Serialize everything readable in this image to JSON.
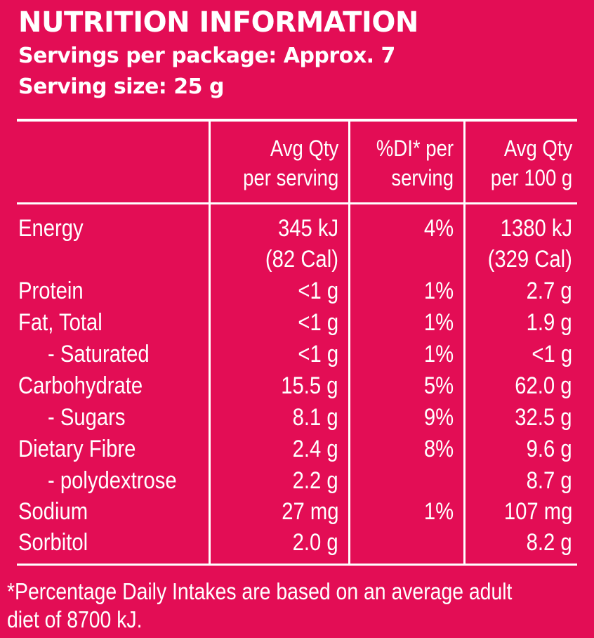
{
  "panel": {
    "title": "NUTRITION INFORMATION",
    "servings_per_package": "Servings per package: Approx. 7",
    "serving_size": "Serving size: 25 g",
    "background_color": "#e30d55",
    "text_color": "#ffffff"
  },
  "table": {
    "headers": [
      {
        "line1": "Avg Qty",
        "line2": "per serving"
      },
      {
        "line1": "%DI* per",
        "line2": "serving"
      },
      {
        "line1": "Avg Qty",
        "line2": "per 100 g"
      }
    ],
    "rows": [
      {
        "name": "Energy",
        "per_serving": "345 kJ",
        "di": "4%",
        "per_100g": "1380 kJ"
      },
      {
        "name": "",
        "per_serving": "(82 Cal)",
        "di": "",
        "per_100g": "(329 Cal)"
      },
      {
        "name": "Protein",
        "per_serving": "<1 g",
        "di": "1%",
        "per_100g": "2.7 g"
      },
      {
        "name": "Fat, Total",
        "per_serving": "<1 g",
        "di": "1%",
        "per_100g": "1.9 g"
      },
      {
        "name": "- Saturated",
        "per_serving": "<1 g",
        "di": "1%",
        "per_100g": "<1 g"
      },
      {
        "name": "Carbohydrate",
        "per_serving": "15.5 g",
        "di": "5%",
        "per_100g": "62.0 g"
      },
      {
        "name": "- Sugars",
        "per_serving": "8.1 g",
        "di": "9%",
        "per_100g": "32.5 g"
      },
      {
        "name": "Dietary Fibre",
        "per_serving": "2.4 g",
        "di": "8%",
        "per_100g": "9.6 g"
      },
      {
        "name": "- polydextrose",
        "per_serving": "2.2 g",
        "di": "",
        "per_100g": "8.7 g"
      },
      {
        "name": "Sodium",
        "per_serving": "27 mg",
        "di": "1%",
        "per_100g": "107 mg"
      },
      {
        "name": "Sorbitol",
        "per_serving": "2.0 g",
        "di": "",
        "per_100g": "8.2 g"
      }
    ]
  },
  "footnote": {
    "line1": "*Percentage Daily Intakes are based on an average adult",
    "line2": "diet of 8700 kJ."
  }
}
